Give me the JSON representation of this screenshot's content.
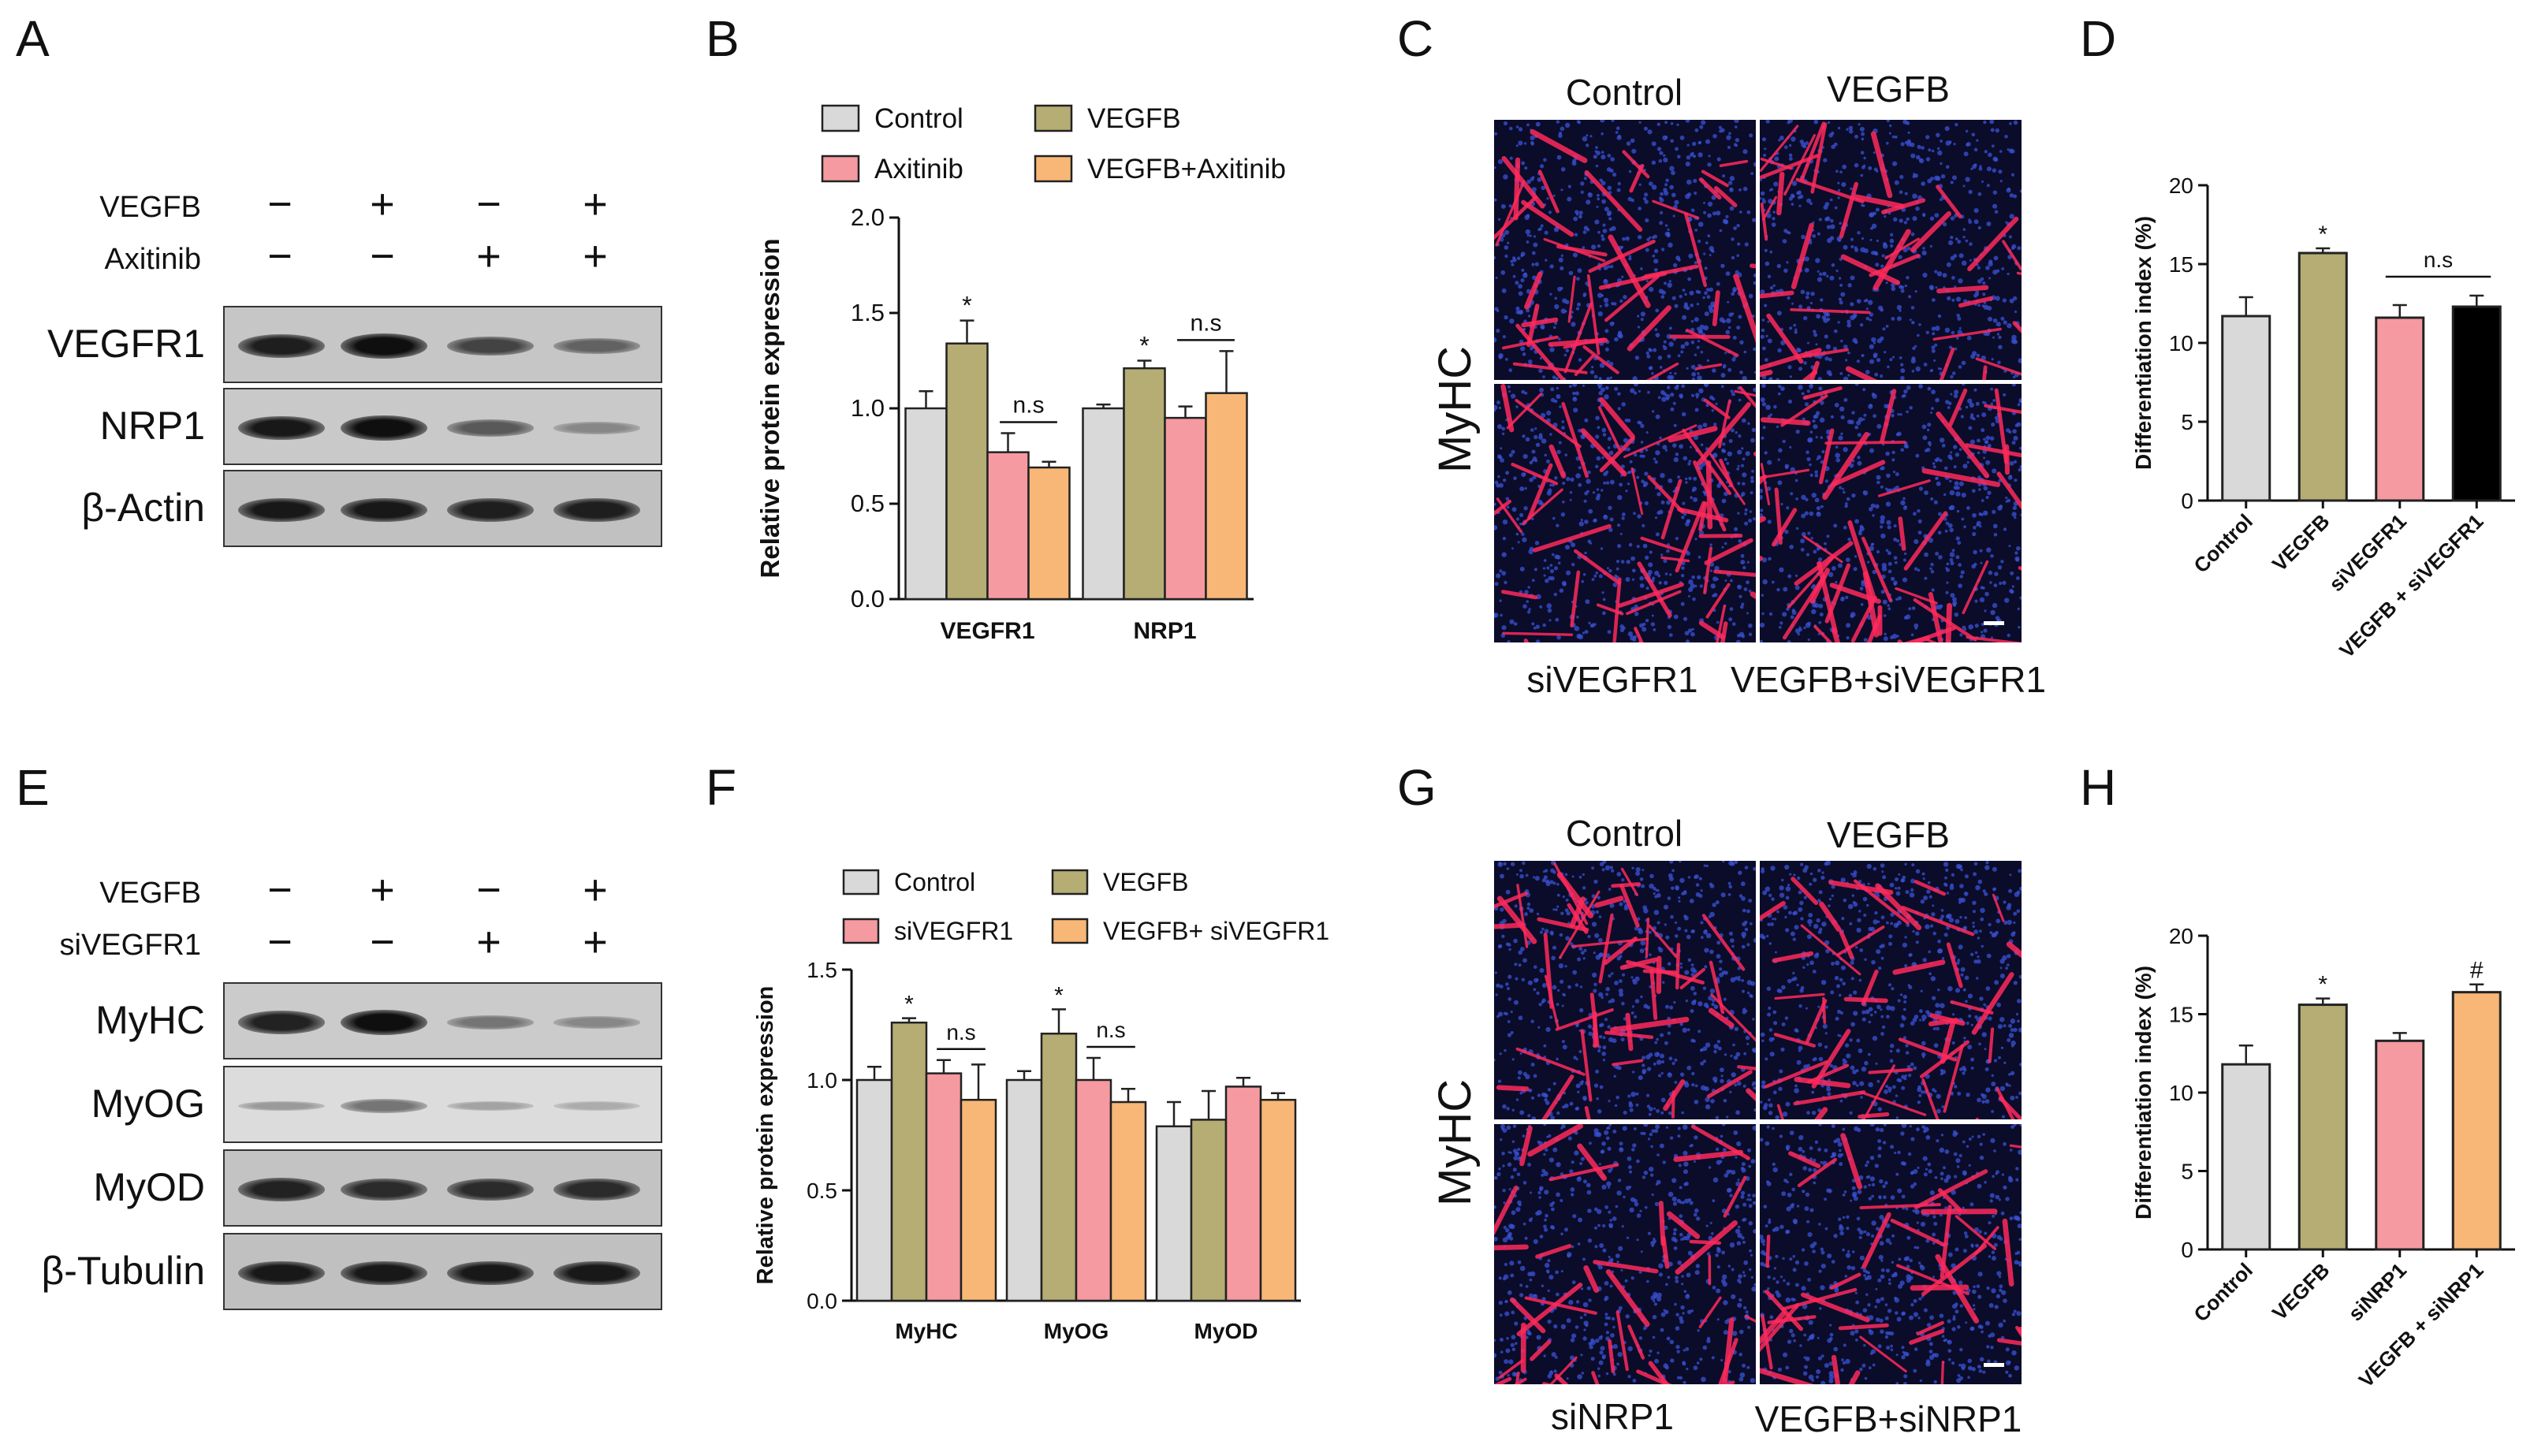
{
  "panel_letters": {
    "A": "A",
    "B": "B",
    "C": "C",
    "D": "D",
    "E": "E",
    "F": "F",
    "G": "G",
    "H": "H"
  },
  "blot_A": {
    "treatments": [
      {
        "name": "VEGFB",
        "signs": [
          "−",
          "+",
          "−",
          "+"
        ]
      },
      {
        "name": "Axitinib",
        "signs": [
          "−",
          "−",
          "+",
          "+"
        ]
      }
    ],
    "rows": [
      {
        "label": "VEGFR1",
        "intensity": [
          0.92,
          1.0,
          0.72,
          0.55
        ]
      },
      {
        "label": "NRP1",
        "intensity": [
          0.95,
          1.0,
          0.6,
          0.35
        ]
      },
      {
        "label": "β-Actin",
        "intensity": [
          0.95,
          0.95,
          0.92,
          0.92
        ]
      }
    ]
  },
  "blot_E": {
    "treatments": [
      {
        "name": "VEGFB",
        "signs": [
          "−",
          "+",
          "−",
          "+"
        ]
      },
      {
        "name": "siVEGFR1",
        "signs": [
          "−",
          "−",
          "+",
          "+"
        ]
      }
    ],
    "rows": [
      {
        "label": "MyHC",
        "intensity": [
          0.9,
          1.0,
          0.45,
          0.35
        ]
      },
      {
        "label": "MyOG",
        "intensity": [
          0.25,
          0.45,
          0.2,
          0.15
        ]
      },
      {
        "label": "MyOD",
        "intensity": [
          0.9,
          0.85,
          0.85,
          0.85
        ]
      },
      {
        "label": "β-Tubulin",
        "intensity": [
          0.95,
          0.95,
          0.95,
          0.95
        ]
      }
    ]
  },
  "micro_C": {
    "marker": "MyHC",
    "top_labels": [
      "Control",
      "VEGFB"
    ],
    "bottom_labels": [
      "siVEGFR1",
      "VEGFB+siVEGFR1"
    ]
  },
  "micro_G": {
    "marker": "MyHC",
    "top_labels": [
      "Control",
      "VEGFB"
    ],
    "bottom_labels": [
      "siNRP1",
      "VEGFB+siNRP1"
    ]
  },
  "colors": {
    "Control": "#d9d9d9",
    "VEGFB": "#b5ad74",
    "Axitinib": "#f59aa0",
    "VEGFB+Axitinib": "#f8b776",
    "siVEGFR1": "#f59aa0",
    "VEGFB+ siVEGFR1": "#f8b776",
    "siNRP1": "#f59aa0",
    "VEGFB + siNRP1": "#f8b776"
  },
  "chart_data": [
    {
      "panel": "B",
      "type": "bar",
      "categories": [
        "VEGFR1",
        "NRP1"
      ],
      "series": [
        {
          "name": "Control",
          "values": [
            1.0,
            1.0
          ],
          "errors": [
            0.09,
            0.02
          ]
        },
        {
          "name": "VEGFB",
          "values": [
            1.34,
            1.21
          ],
          "errors": [
            0.12,
            0.04
          ]
        },
        {
          "name": "Axitinib",
          "values": [
            0.77,
            0.95
          ],
          "errors": [
            0.1,
            0.06
          ]
        },
        {
          "name": "VEGFB+Axitinib",
          "values": [
            0.69,
            1.08
          ],
          "errors": [
            0.03,
            0.22
          ]
        }
      ],
      "ylabel": "Relative protein expression",
      "ylim": [
        0,
        2.0
      ],
      "yticks": [
        "0.0",
        "0.5",
        "1.0",
        "1.5",
        "2.0"
      ],
      "legend_placement": "top",
      "annotations": [
        {
          "text": "*",
          "category": 0,
          "series": 1
        },
        {
          "text": "n.s",
          "category": 0,
          "span": [
            2,
            3
          ]
        },
        {
          "text": "*",
          "category": 1,
          "series": 1
        },
        {
          "text": "n.s",
          "category": 1,
          "span": [
            2,
            3
          ]
        }
      ]
    },
    {
      "panel": "D",
      "type": "bar",
      "categories": [
        "Control",
        "VEGFB",
        "siVEGFR1",
        "VEGFB + siVEGFR1"
      ],
      "values": [
        11.7,
        15.7,
        11.6,
        12.3
      ],
      "errors": [
        1.2,
        0.3,
        0.8,
        0.7
      ],
      "ylabel": "Differentiation index (%)",
      "ylim": [
        0,
        20
      ],
      "yticks": [
        "0",
        "5",
        "10",
        "15",
        "20"
      ],
      "annotations": [
        {
          "text": "*",
          "index": 1
        },
        {
          "text": "n.s",
          "span": [
            2,
            3
          ]
        }
      ]
    },
    {
      "panel": "F",
      "type": "bar",
      "categories": [
        "MyHC",
        "MyOG",
        "MyOD"
      ],
      "series": [
        {
          "name": "Control",
          "values": [
            1.0,
            1.0,
            0.79
          ],
          "errors": [
            0.06,
            0.04,
            0.11
          ]
        },
        {
          "name": "VEGFB",
          "values": [
            1.26,
            1.21,
            0.82
          ],
          "errors": [
            0.02,
            0.11,
            0.13
          ]
        },
        {
          "name": "siVEGFR1",
          "values": [
            1.03,
            1.0,
            0.97
          ],
          "errors": [
            0.06,
            0.1,
            0.04
          ]
        },
        {
          "name": "VEGFB+ siVEGFR1",
          "values": [
            0.91,
            0.9,
            0.91
          ],
          "errors": [
            0.16,
            0.06,
            0.03
          ]
        }
      ],
      "ylabel": "Relative protein expression",
      "ylim": [
        0,
        1.5
      ],
      "yticks": [
        "0.0",
        "0.5",
        "1.0",
        "1.5"
      ],
      "legend_placement": "top",
      "annotations": [
        {
          "text": "*",
          "category": 0,
          "series": 1
        },
        {
          "text": "n.s",
          "category": 0,
          "span": [
            2,
            3
          ]
        },
        {
          "text": "*",
          "category": 1,
          "series": 1
        },
        {
          "text": "n.s",
          "category": 1,
          "span": [
            2,
            3
          ]
        }
      ]
    },
    {
      "panel": "H",
      "type": "bar",
      "categories": [
        "Control",
        "VEGFB",
        "siNRP1",
        "VEGFB + siNRP1"
      ],
      "values": [
        11.8,
        15.6,
        13.3,
        16.4
      ],
      "errors": [
        1.2,
        0.4,
        0.5,
        0.5
      ],
      "ylabel": "Differentiation index (%)",
      "ylim": [
        0,
        20
      ],
      "yticks": [
        "0",
        "5",
        "10",
        "15",
        "20"
      ],
      "annotations": [
        {
          "text": "*",
          "index": 1
        },
        {
          "text": "#",
          "index": 3
        }
      ]
    }
  ]
}
